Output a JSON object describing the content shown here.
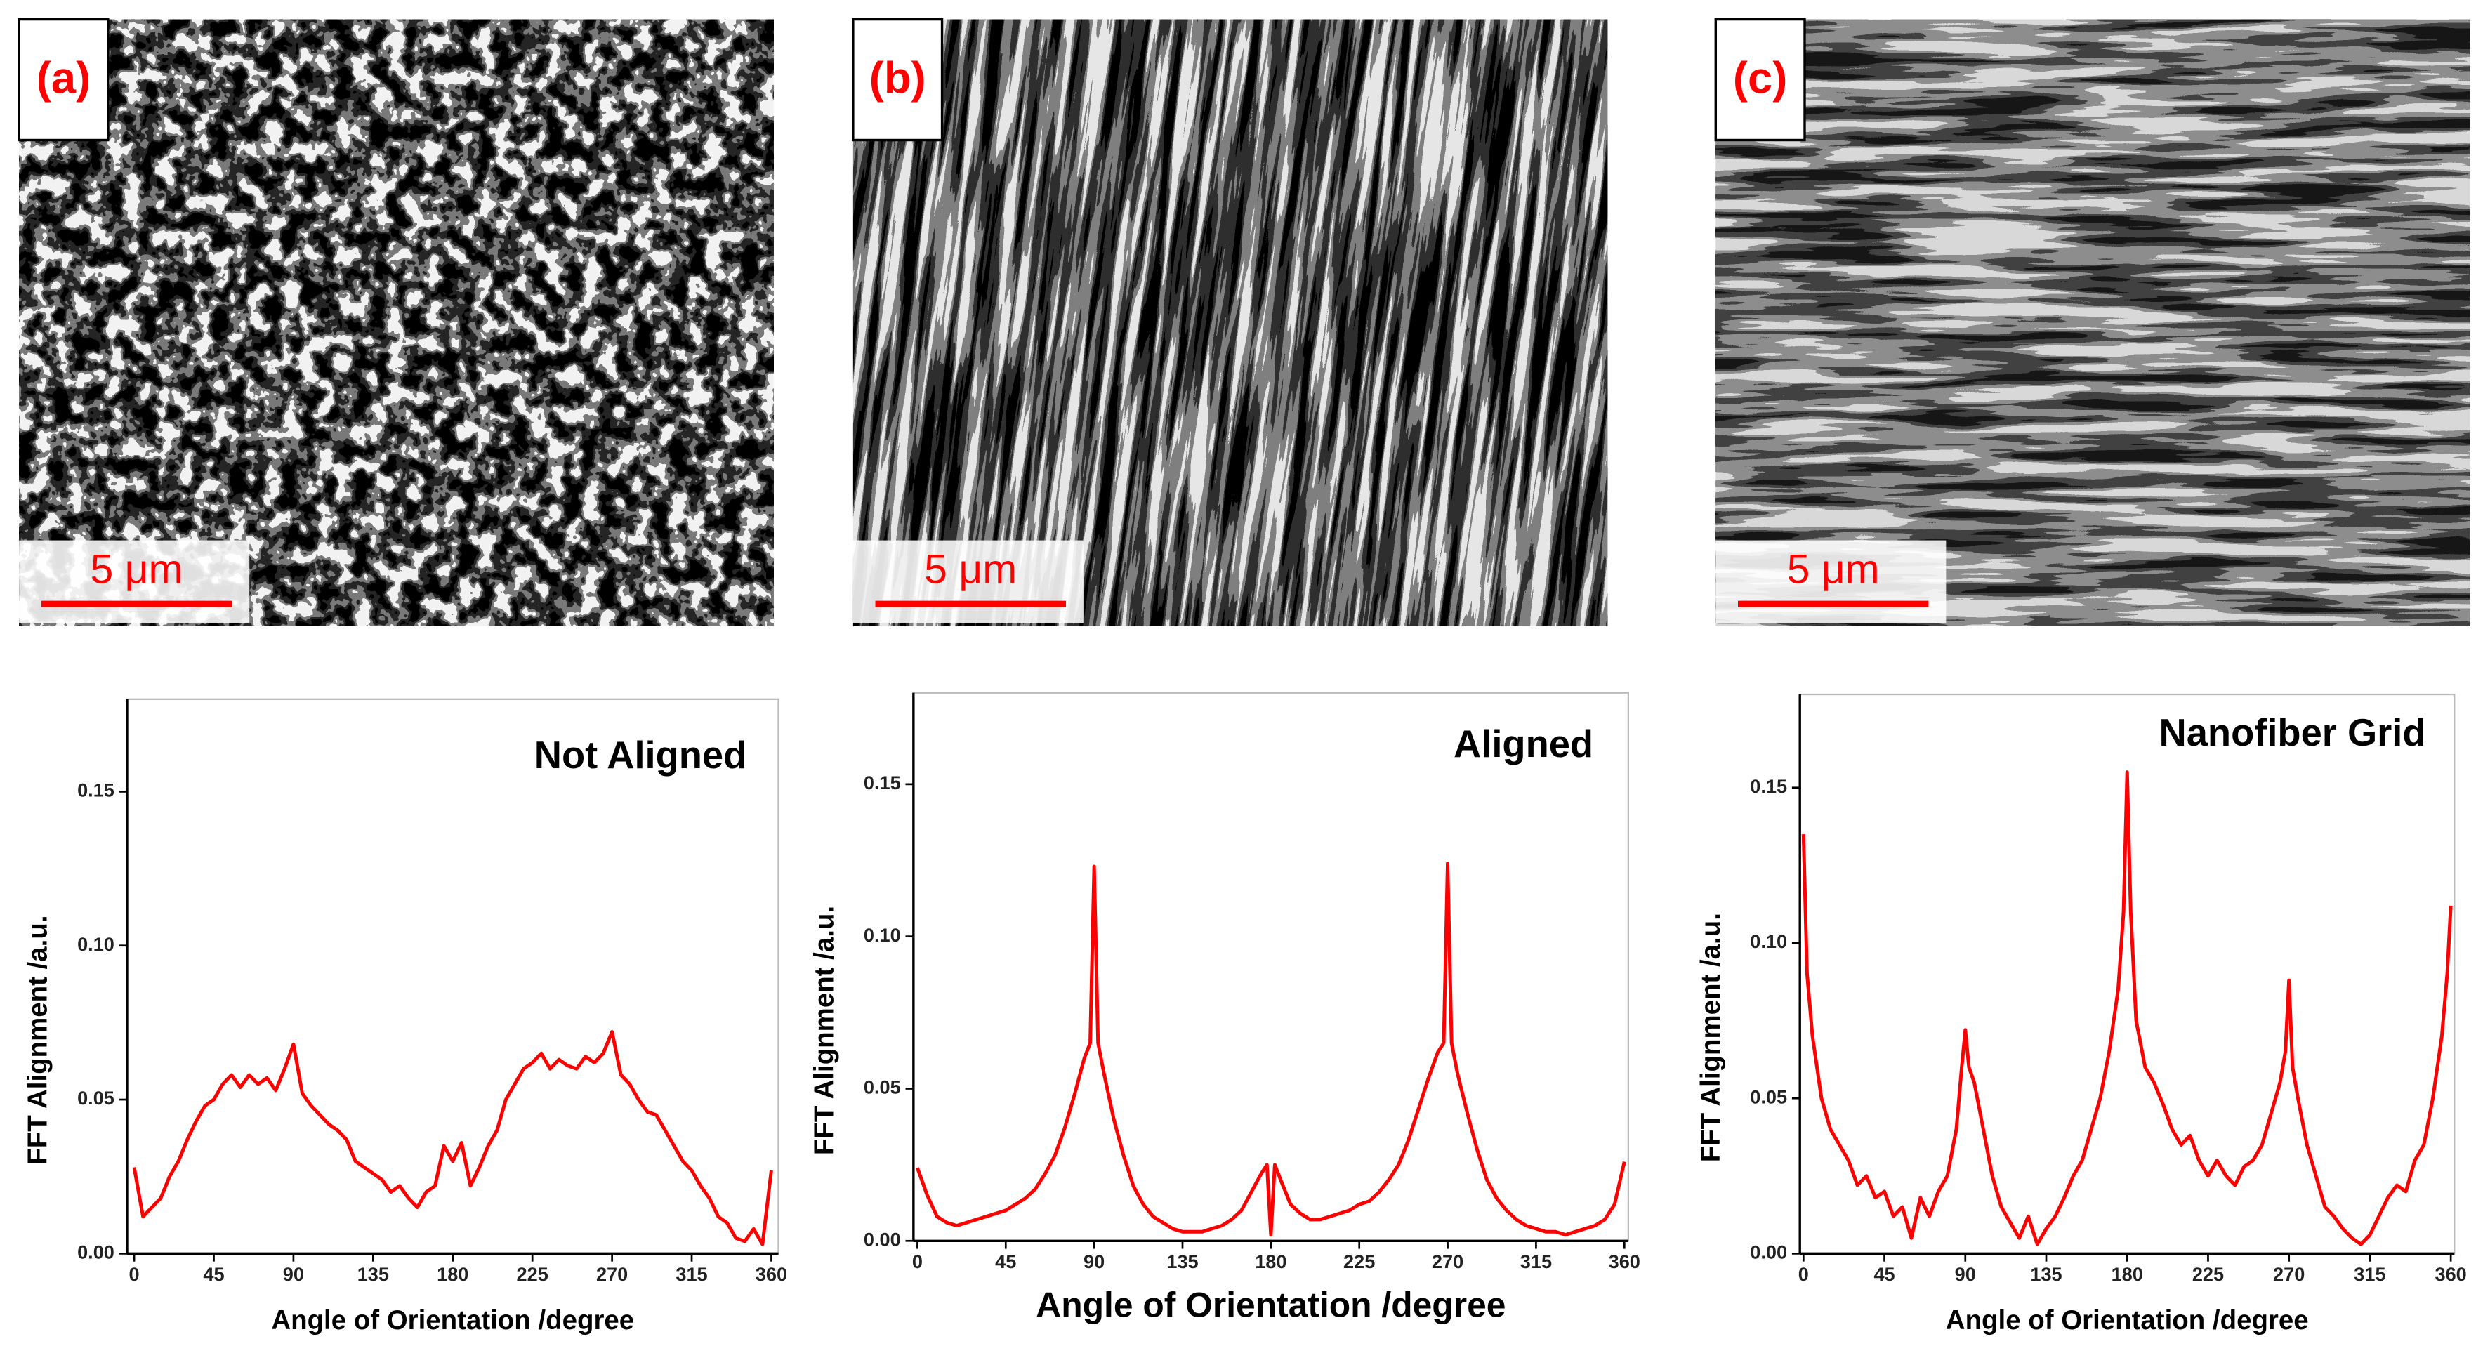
{
  "panels": [
    {
      "label": "(a)",
      "scale_bar": "5 μm"
    },
    {
      "label": "(b)",
      "scale_bar": "5 μm"
    },
    {
      "label": "(c)",
      "scale_bar": "5 μm"
    }
  ],
  "chart_data": [
    {
      "type": "line",
      "annotation": "Not Aligned",
      "xlabel": "Angle of Orientation /degree",
      "ylabel": "FFT Alignment /a.u.",
      "color": "#ff0000",
      "x": [
        0,
        5,
        10,
        15,
        20,
        25,
        30,
        35,
        40,
        45,
        50,
        55,
        60,
        65,
        70,
        75,
        80,
        85,
        90,
        95,
        100,
        105,
        110,
        115,
        120,
        125,
        130,
        135,
        140,
        145,
        150,
        155,
        160,
        165,
        170,
        175,
        180,
        185,
        190,
        195,
        200,
        205,
        210,
        215,
        220,
        225,
        230,
        235,
        240,
        245,
        250,
        255,
        260,
        265,
        270,
        275,
        280,
        285,
        290,
        295,
        300,
        305,
        310,
        315,
        320,
        325,
        330,
        335,
        340,
        345,
        350,
        355,
        360
      ],
      "values": [
        0.028,
        0.012,
        0.015,
        0.018,
        0.025,
        0.03,
        0.037,
        0.043,
        0.048,
        0.05,
        0.055,
        0.058,
        0.054,
        0.058,
        0.055,
        0.057,
        0.053,
        0.06,
        0.068,
        0.052,
        0.048,
        0.045,
        0.042,
        0.04,
        0.037,
        0.03,
        0.028,
        0.026,
        0.024,
        0.02,
        0.022,
        0.018,
        0.015,
        0.02,
        0.022,
        0.035,
        0.03,
        0.036,
        0.022,
        0.028,
        0.035,
        0.04,
        0.05,
        0.055,
        0.06,
        0.062,
        0.065,
        0.06,
        0.063,
        0.061,
        0.06,
        0.064,
        0.062,
        0.065,
        0.072,
        0.058,
        0.055,
        0.05,
        0.046,
        0.045,
        0.04,
        0.035,
        0.03,
        0.027,
        0.022,
        0.018,
        0.012,
        0.01,
        0.005,
        0.004,
        0.008,
        0.003,
        0.027
      ],
      "xlim": [
        -4,
        364
      ],
      "ylim": [
        0,
        0.18
      ],
      "xticks": [
        0,
        45,
        90,
        135,
        180,
        225,
        270,
        315,
        360
      ],
      "yticks": [
        {
          "value": 0,
          "label": "0.00"
        },
        {
          "value": 0.05,
          "label": "0.05"
        },
        {
          "value": 0.1,
          "label": "0.10"
        },
        {
          "value": 0.15,
          "label": "0.15"
        }
      ]
    },
    {
      "type": "line",
      "annotation": "Aligned",
      "xlabel": "Angle of Orientation /degree",
      "ylabel": "FFT Alignment /a.u.",
      "color": "#ff0000",
      "x": [
        0,
        5,
        10,
        15,
        20,
        25,
        30,
        35,
        40,
        45,
        50,
        55,
        60,
        65,
        70,
        75,
        80,
        85,
        88,
        90,
        92,
        95,
        100,
        105,
        110,
        115,
        120,
        125,
        130,
        135,
        140,
        145,
        150,
        155,
        160,
        165,
        170,
        175,
        178,
        180,
        182,
        185,
        190,
        195,
        200,
        205,
        210,
        215,
        220,
        225,
        230,
        235,
        240,
        245,
        250,
        255,
        260,
        265,
        268,
        270,
        272,
        275,
        280,
        285,
        290,
        295,
        300,
        305,
        310,
        315,
        320,
        325,
        330,
        335,
        340,
        345,
        350,
        355,
        360
      ],
      "values": [
        0.024,
        0.015,
        0.008,
        0.006,
        0.005,
        0.006,
        0.007,
        0.008,
        0.009,
        0.01,
        0.012,
        0.014,
        0.017,
        0.022,
        0.028,
        0.037,
        0.048,
        0.06,
        0.065,
        0.123,
        0.065,
        0.055,
        0.04,
        0.028,
        0.018,
        0.012,
        0.008,
        0.006,
        0.004,
        0.003,
        0.003,
        0.003,
        0.004,
        0.005,
        0.007,
        0.01,
        0.016,
        0.022,
        0.025,
        0.002,
        0.025,
        0.02,
        0.012,
        0.009,
        0.007,
        0.007,
        0.008,
        0.009,
        0.01,
        0.012,
        0.013,
        0.016,
        0.02,
        0.025,
        0.033,
        0.043,
        0.053,
        0.062,
        0.065,
        0.124,
        0.065,
        0.055,
        0.042,
        0.03,
        0.02,
        0.014,
        0.01,
        0.007,
        0.005,
        0.004,
        0.003,
        0.003,
        0.002,
        0.003,
        0.004,
        0.005,
        0.007,
        0.012,
        0.026
      ],
      "xlim": [
        -2,
        362
      ],
      "ylim": [
        0,
        0.18
      ],
      "xticks": [
        0,
        45,
        90,
        135,
        180,
        225,
        270,
        315,
        360
      ],
      "yticks": [
        {
          "value": 0,
          "label": "0.00"
        },
        {
          "value": 0.05,
          "label": "0.05"
        },
        {
          "value": 0.1,
          "label": "0.10"
        },
        {
          "value": 0.15,
          "label": "0.15"
        }
      ]
    },
    {
      "type": "line",
      "annotation": "Nanofiber Grid",
      "xlabel": "Angle of Orientation /degree",
      "ylabel": "FFT Alignment /a.u.",
      "color": "#ff0000",
      "x": [
        0,
        2,
        5,
        10,
        15,
        20,
        25,
        30,
        35,
        40,
        45,
        50,
        55,
        60,
        65,
        70,
        75,
        80,
        85,
        88,
        90,
        92,
        95,
        100,
        105,
        110,
        115,
        120,
        125,
        130,
        135,
        140,
        145,
        150,
        155,
        160,
        165,
        170,
        175,
        178,
        180,
        182,
        185,
        190,
        195,
        200,
        205,
        210,
        215,
        220,
        225,
        230,
        235,
        240,
        245,
        250,
        255,
        260,
        265,
        268,
        270,
        272,
        275,
        280,
        285,
        290,
        295,
        300,
        305,
        310,
        315,
        320,
        325,
        330,
        335,
        340,
        345,
        350,
        355,
        358,
        360
      ],
      "values": [
        0.135,
        0.09,
        0.07,
        0.05,
        0.04,
        0.035,
        0.03,
        0.022,
        0.025,
        0.018,
        0.02,
        0.012,
        0.015,
        0.005,
        0.018,
        0.012,
        0.02,
        0.025,
        0.04,
        0.06,
        0.072,
        0.06,
        0.055,
        0.04,
        0.025,
        0.015,
        0.01,
        0.005,
        0.012,
        0.003,
        0.008,
        0.012,
        0.018,
        0.025,
        0.03,
        0.04,
        0.05,
        0.065,
        0.085,
        0.11,
        0.155,
        0.11,
        0.075,
        0.06,
        0.055,
        0.048,
        0.04,
        0.035,
        0.038,
        0.03,
        0.025,
        0.03,
        0.025,
        0.022,
        0.028,
        0.03,
        0.035,
        0.045,
        0.055,
        0.065,
        0.088,
        0.06,
        0.05,
        0.035,
        0.025,
        0.015,
        0.012,
        0.008,
        0.005,
        0.003,
        0.006,
        0.012,
        0.018,
        0.022,
        0.02,
        0.03,
        0.035,
        0.05,
        0.07,
        0.09,
        0.112
      ],
      "xlim": [
        -2,
        362
      ],
      "ylim": [
        0,
        0.18
      ],
      "xticks": [
        0,
        45,
        90,
        135,
        180,
        225,
        270,
        315,
        360
      ],
      "yticks": [
        {
          "value": 0,
          "label": "0.00"
        },
        {
          "value": 0.05,
          "label": "0.05"
        },
        {
          "value": 0.1,
          "label": "0.10"
        },
        {
          "value": 0.15,
          "label": "0.15"
        }
      ]
    }
  ]
}
